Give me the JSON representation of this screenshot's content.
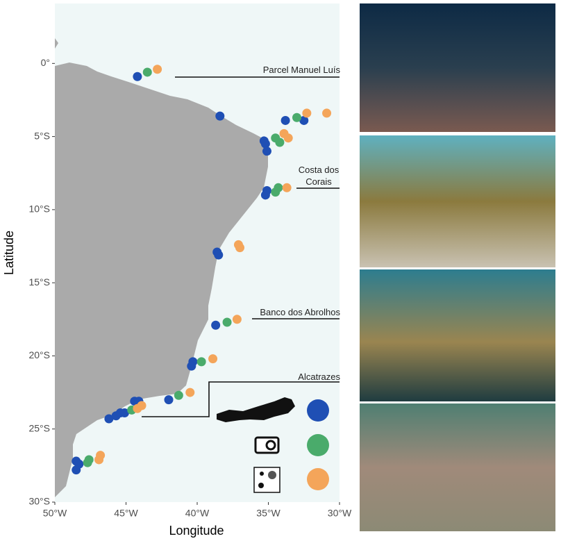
{
  "chart_data": {
    "type": "scatter",
    "xlabel": "Longitude",
    "ylabel": "Latitude",
    "xlim": [
      -50,
      -30
    ],
    "ylim": [
      -30,
      4.1
    ],
    "xticks": [
      {
        "value": -50,
        "label": "50°W"
      },
      {
        "value": -45,
        "label": "45°W"
      },
      {
        "value": -40,
        "label": "40°W"
      },
      {
        "value": -35,
        "label": "35°W"
      },
      {
        "value": -30,
        "label": "30°W"
      }
    ],
    "yticks": [
      {
        "value": 0,
        "label": "0°"
      },
      {
        "value": -5,
        "label": "5°S"
      },
      {
        "value": -10,
        "label": "10°S"
      },
      {
        "value": -15,
        "label": "15°S"
      },
      {
        "value": -20,
        "label": "20°S"
      },
      {
        "value": -25,
        "label": "25°S"
      },
      {
        "value": -30,
        "label": "30°S"
      }
    ],
    "annotations": [
      "Parcel Manuel Luís",
      "Costa dos Corais",
      "Banco dos Abrolhos",
      "Alcatrazes"
    ],
    "series": [
      {
        "color": "#1f4fb4",
        "x": [
          -44.2,
          -38.4,
          -33.8,
          -32.5,
          -35.3,
          -35.2,
          -35.1,
          -35.1,
          -35.2,
          -38.6,
          -38.5,
          -38.7,
          -40.3,
          -40.4,
          -44.4,
          -44.1,
          -42.0,
          -46.2,
          -45.7,
          -45.4,
          -45.1,
          -48.5,
          -48.3,
          -48.5
        ],
        "y": [
          -0.9,
          -3.6,
          -3.9,
          -3.9,
          -5.3,
          -5.5,
          -6.0,
          -8.7,
          -9.0,
          -12.9,
          -13.1,
          -17.9,
          -20.4,
          -20.7,
          -23.1,
          -23.1,
          -23.0,
          -24.3,
          -24.1,
          -23.9,
          -23.9,
          -27.2,
          -27.4,
          -27.8
        ]
      },
      {
        "color": "#4aab6b",
        "x": [
          -43.5,
          -33.0,
          -34.5,
          -34.2,
          -34.3,
          -34.5,
          -37.9,
          -39.7,
          -41.3,
          -44.6,
          -47.6,
          -47.7
        ],
        "y": [
          -0.6,
          -3.7,
          -5.1,
          -5.4,
          -8.5,
          -8.8,
          -17.7,
          -20.4,
          -22.7,
          -23.7,
          -27.1,
          -27.3
        ]
      },
      {
        "color": "#f4a55a",
        "x": [
          -42.8,
          -32.3,
          -30.9,
          -33.9,
          -33.6,
          -33.7,
          -37.1,
          -37.0,
          -37.2,
          -38.9,
          -40.5,
          -43.9,
          -44.2,
          -46.8,
          -46.9
        ],
        "y": [
          -0.4,
          -3.4,
          -3.4,
          -4.8,
          -5.1,
          -8.5,
          -12.4,
          -12.6,
          -17.5,
          -20.2,
          -22.5,
          -23.4,
          -23.6,
          -26.8,
          -27.1
        ]
      }
    ]
  }
}
